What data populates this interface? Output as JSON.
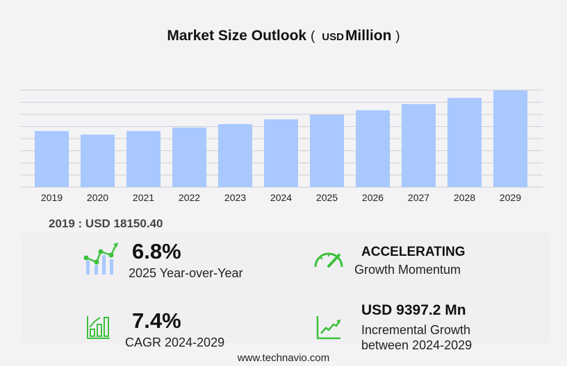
{
  "title": {
    "main": "Market Size Outlook",
    "open": "(",
    "unit": "USD",
    "unit_word": "Million",
    "close": ")"
  },
  "chart_data": {
    "type": "bar",
    "categories": [
      "2019",
      "2020",
      "2021",
      "2022",
      "2023",
      "2024",
      "2025",
      "2026",
      "2027",
      "2028",
      "2029"
    ],
    "values": [
      18150.4,
      17000,
      18150,
      19300,
      20400,
      21925,
      23416,
      24860,
      26880,
      28900,
      31322
    ],
    "ylim": [
      0,
      31400
    ],
    "grid": true,
    "bar_color": "#a8c8ff"
  },
  "base_year": {
    "label": "2019 : USD  18150.40"
  },
  "stats": {
    "yoy": {
      "value": "6.8%",
      "label": "2025 Year-over-Year",
      "icon": "bar-line-growth-icon"
    },
    "momentum": {
      "value": "ACCELERATING",
      "label": "Growth Momentum",
      "icon": "speedometer-icon"
    },
    "cagr": {
      "value": "7.4%",
      "label": "CAGR 2024-2029",
      "icon": "bar-chart-arrow-icon"
    },
    "incremental": {
      "value": "USD 9397.2 Mn",
      "label1": "Incremental Growth",
      "label2": "between 2024-2029",
      "icon": "line-chart-up-icon"
    }
  },
  "colors": {
    "accent": "#3cc13b",
    "bar": "#a8c8ff"
  },
  "footer": "www.technavio.com"
}
